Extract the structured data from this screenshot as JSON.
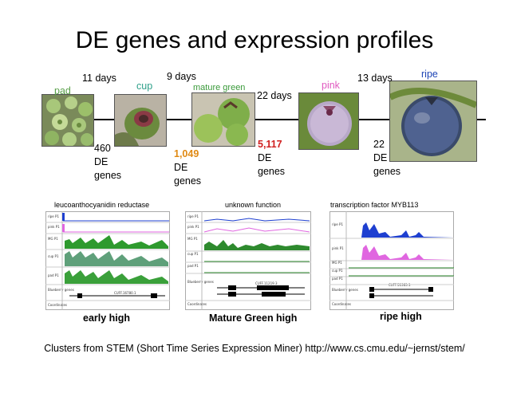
{
  "title": "DE genes and expression profiles",
  "colors": {
    "pad": "#5aa04a",
    "cup": "#2fa08a",
    "mature_green": "#3a9a3a",
    "pink": "#e05ac0",
    "ripe": "#1e45b5",
    "de_1049": "#e08a14",
    "de_5117": "#d02020",
    "ripe_track": "#1e3fd0",
    "pink_track": "#e066e0",
    "green_track": "#2e8a2e"
  },
  "stages": {
    "pad": "pad",
    "cup": "cup",
    "mature_green": "mature green",
    "pink": "pink",
    "ripe": "ripe"
  },
  "intervals": {
    "d1": "11 days",
    "d2": "9 days",
    "d3": "22 days",
    "d4": "13 days"
  },
  "de_counts": {
    "c1": {
      "value": "460",
      "l1": "DE",
      "l2": "genes"
    },
    "c2": {
      "value": "1,049",
      "l1": "DE",
      "l2": "genes"
    },
    "c3": {
      "value": "5,117",
      "l1": "DE",
      "l2": "genes"
    },
    "c4": {
      "value": "22",
      "l1": "DE",
      "l2": "genes"
    }
  },
  "panels": [
    {
      "label": "leucoanthocyanidin reductase",
      "caption": "early high",
      "gene_id": "CUFF.16780.1"
    },
    {
      "label": "unknown function",
      "caption": "Mature Green high",
      "gene_id": "CUFF.11219.3"
    },
    {
      "label": "transcription factor MYB113",
      "caption": "ripe high",
      "gene_id": "CUFF.51383.1"
    }
  ],
  "track_labels": {
    "ripe": "ripe P1",
    "pink": "pink P1",
    "mg": "MG P1",
    "cup": "cup P1",
    "pad": "pad P1",
    "blueberry": "Blueberry genes",
    "coords": "Coordinates"
  },
  "footer": "Clusters from STEM (Short Time Series Expression Miner) http://www.cs.cmu.edu/~jernst/stem/"
}
